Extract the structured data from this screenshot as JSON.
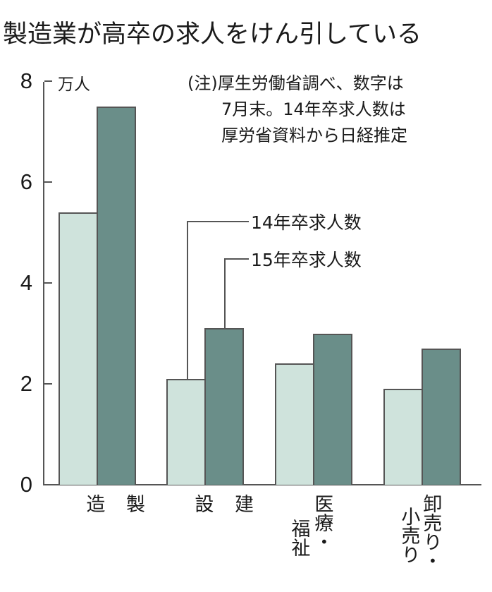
{
  "title": "製造業が高卒の求人をけん引している",
  "note": "(注)厚生労働省調べ、数字は\n　　7月末。14年卒求人数は\n　　厚労省資料から日経推定",
  "y_unit": "万人",
  "y_ticks": [
    "0",
    "2",
    "4",
    "6",
    "8"
  ],
  "legend": {
    "series_14": "14年卒求人数",
    "series_15": "15年卒求人数"
  },
  "categories": [
    {
      "label_main": "製\n\n造",
      "label_col2": ""
    },
    {
      "label_main": "建\n\n設",
      "label_col2": ""
    },
    {
      "label_main": "医療・",
      "label_col2": "福祉"
    },
    {
      "label_main": "卸売り・",
      "label_col2": "小売り"
    }
  ],
  "colors": {
    "series_14": "#cfe3dc",
    "series_15": "#6a8e89",
    "axis": "#555555"
  },
  "chart_data": {
    "type": "bar",
    "title": "製造業が高卒の求人をけん引している",
    "categories": [
      "製造",
      "建設",
      "医療・福祉",
      "卸売り・小売り"
    ],
    "series": [
      {
        "name": "14年卒求人数",
        "values": [
          5.4,
          2.1,
          2.4,
          1.9
        ],
        "color": "#cfe3dc"
      },
      {
        "name": "15年卒求人数",
        "values": [
          7.5,
          3.1,
          3.0,
          2.7
        ],
        "color": "#6a8e89"
      }
    ],
    "xlabel": "",
    "ylabel": "万人",
    "ylim": [
      0,
      8
    ],
    "yticks": [
      0,
      2,
      4,
      6,
      8
    ],
    "grid": false,
    "legend_position": "leader-line labels inside plot",
    "annotations": [
      "(注)厚生労働省調べ、数字は7月末。14年卒求人数は厚労省資料から日経推定"
    ]
  }
}
